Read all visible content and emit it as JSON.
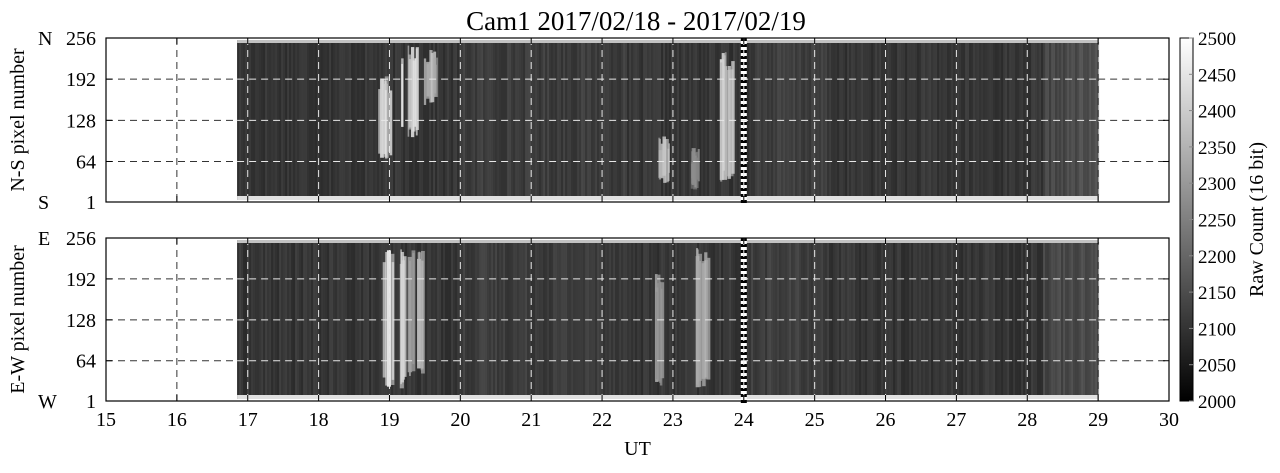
{
  "chart_data": {
    "type": "heatmap",
    "title": "Cam1  2017/02/18 - 2017/02/19",
    "xlabel": "UT",
    "xlim": [
      15,
      30
    ],
    "x_ticks": [
      "15",
      "16",
      "17",
      "18",
      "19",
      "20",
      "21",
      "22",
      "23",
      "24",
      "25",
      "26",
      "27",
      "28",
      "29",
      "30"
    ],
    "data_x_range": [
      16.85,
      29.0
    ],
    "day_boundary_x": 24,
    "grid": true,
    "panels": [
      {
        "id": "ns",
        "ylabel": "N-S pixel number",
        "y_end_top": "N",
        "y_end_bottom": "S",
        "ylim": [
          1,
          256
        ],
        "y_ticks": [
          "256",
          "192",
          "128",
          "64",
          "1"
        ],
        "aurora": [
          {
            "x": 18.9,
            "w": 0.22,
            "lo": 60,
            "hi": 200,
            "v": 2440
          },
          {
            "x": 19.3,
            "w": 0.3,
            "lo": 100,
            "hi": 245,
            "v": 2460
          },
          {
            "x": 19.55,
            "w": 0.18,
            "lo": 150,
            "hi": 240,
            "v": 2400
          },
          {
            "x": 22.85,
            "w": 0.18,
            "lo": 30,
            "hi": 110,
            "v": 2400
          },
          {
            "x": 23.3,
            "w": 0.1,
            "lo": 20,
            "hi": 90,
            "v": 2300
          },
          {
            "x": 23.75,
            "w": 0.2,
            "lo": 30,
            "hi": 235,
            "v": 2420
          }
        ]
      },
      {
        "id": "ew",
        "ylabel": "E-W pixel number",
        "y_end_top": "E",
        "y_end_bottom": "W",
        "ylim": [
          1,
          256
        ],
        "y_ticks": [
          "256",
          "192",
          "128",
          "64",
          "1"
        ],
        "aurora": [
          {
            "x": 19.05,
            "w": 0.3,
            "lo": 20,
            "hi": 245,
            "v": 2470
          },
          {
            "x": 19.35,
            "w": 0.2,
            "lo": 40,
            "hi": 240,
            "v": 2380
          },
          {
            "x": 22.8,
            "w": 0.12,
            "lo": 20,
            "hi": 200,
            "v": 2320
          },
          {
            "x": 23.45,
            "w": 0.3,
            "lo": 20,
            "hi": 245,
            "v": 2380
          }
        ]
      }
    ],
    "colorbar": {
      "label": "Raw Count (16 bit)",
      "range": [
        2000,
        2500
      ],
      "ticks": [
        "2500",
        "2450",
        "2400",
        "2350",
        "2300",
        "2250",
        "2200",
        "2150",
        "2100",
        "2050",
        "2000"
      ],
      "colormap": "gray"
    }
  }
}
